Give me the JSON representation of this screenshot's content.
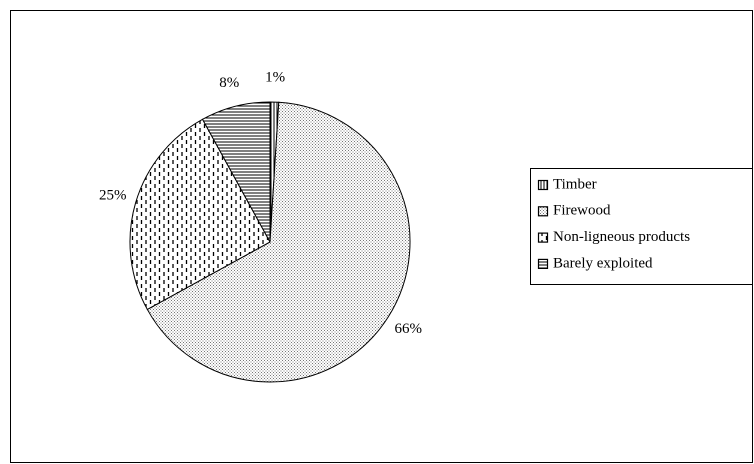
{
  "chart_data": {
    "type": "pie",
    "categories": [
      "Timber",
      "Firewood",
      "Non-ligneous products",
      "Barely exploited"
    ],
    "values": [
      1,
      66,
      25,
      8
    ],
    "value_labels": [
      "1%",
      "66%",
      "25%",
      "8%"
    ],
    "patterns": [
      "vertical",
      "dots",
      "dashes",
      "horizontal"
    ],
    "color": "#000000",
    "legend": "right"
  }
}
